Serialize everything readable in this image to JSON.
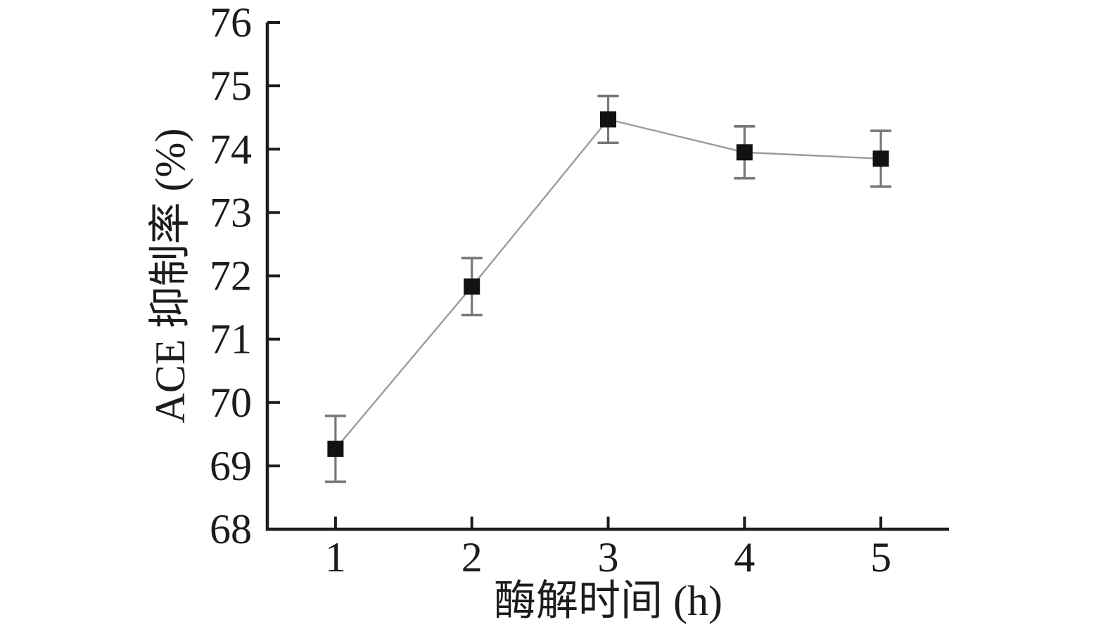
{
  "chart_data": {
    "type": "line",
    "title": "",
    "xlabel": "酶解时间 (h)",
    "ylabel": "ACE 抑制率 (%)",
    "x": [
      1,
      2,
      3,
      4,
      5
    ],
    "series": [
      {
        "name": "ACE inhibition rate",
        "values": [
          69.27,
          71.83,
          74.47,
          73.95,
          73.85
        ],
        "errors": [
          0.52,
          0.45,
          0.37,
          0.41,
          0.44
        ]
      }
    ],
    "xlim": [
      0.5,
      5.5
    ],
    "ylim": [
      68,
      76
    ],
    "xticks": [
      1,
      2,
      3,
      4,
      5
    ],
    "yticks": [
      68,
      69,
      70,
      71,
      72,
      73,
      74,
      75,
      76
    ],
    "grid": false,
    "legend_position": "none",
    "marker": "square",
    "colors": {
      "background": "#ffffff",
      "axis": "#1c1c1c",
      "tick_label": "#1c1c1c",
      "series_line": "#9b9b9b",
      "error_bar": "#787878",
      "marker": "#121212"
    }
  }
}
